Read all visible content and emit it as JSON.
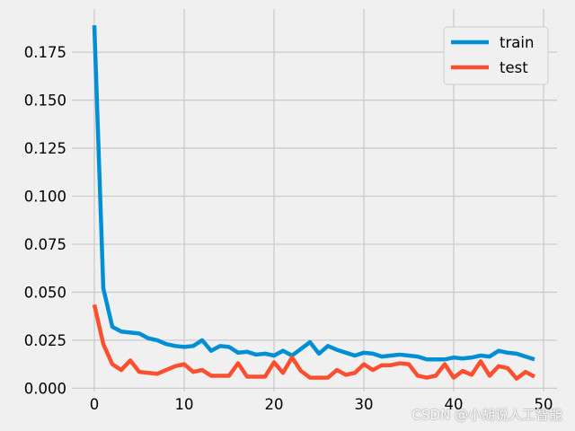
{
  "chart_data": {
    "type": "line",
    "title": "",
    "xlabel": "",
    "ylabel": "",
    "xlim": [
      -2.5,
      51.5
    ],
    "ylim": [
      -0.0017,
      0.1975
    ],
    "x_ticks": [
      0,
      10,
      20,
      30,
      40,
      50
    ],
    "x_tick_labels": [
      "0",
      "10",
      "20",
      "30",
      "40",
      "50"
    ],
    "y_ticks": [
      0.0,
      0.025,
      0.05,
      0.075,
      0.1,
      0.125,
      0.15,
      0.175
    ],
    "y_tick_labels": [
      "0.000",
      "0.025",
      "0.050",
      "0.075",
      "0.100",
      "0.125",
      "0.150",
      "0.175"
    ],
    "grid": true,
    "legend_position": "top-right",
    "legend": [
      "train",
      "test"
    ],
    "x": [
      0,
      1,
      2,
      3,
      4,
      5,
      6,
      7,
      8,
      9,
      10,
      11,
      12,
      13,
      14,
      15,
      16,
      17,
      18,
      19,
      20,
      21,
      22,
      23,
      24,
      25,
      26,
      27,
      28,
      29,
      30,
      31,
      32,
      33,
      34,
      35,
      36,
      37,
      38,
      39,
      40,
      41,
      42,
      43,
      44,
      45,
      46,
      47,
      48,
      49
    ],
    "series": [
      {
        "name": "train",
        "color": "#008fd5",
        "values": [
          0.189,
          0.052,
          0.032,
          0.0295,
          0.029,
          0.0285,
          0.026,
          0.025,
          0.023,
          0.022,
          0.0215,
          0.022,
          0.025,
          0.0195,
          0.022,
          0.0215,
          0.0185,
          0.019,
          0.0175,
          0.018,
          0.017,
          0.0195,
          0.017,
          0.0205,
          0.024,
          0.018,
          0.022,
          0.02,
          0.0185,
          0.017,
          0.0185,
          0.018,
          0.0165,
          0.017,
          0.0175,
          0.017,
          0.0165,
          0.015,
          0.015,
          0.015,
          0.016,
          0.0155,
          0.016,
          0.017,
          0.0165,
          0.0195,
          0.0185,
          0.018,
          0.0165,
          0.015
        ]
      },
      {
        "name": "test",
        "color": "#fc4f30",
        "values": [
          0.0435,
          0.023,
          0.0125,
          0.0095,
          0.0145,
          0.0085,
          0.008,
          0.0075,
          0.0095,
          0.0115,
          0.0125,
          0.0085,
          0.0095,
          0.0065,
          0.0065,
          0.0065,
          0.013,
          0.006,
          0.006,
          0.006,
          0.0135,
          0.008,
          0.016,
          0.009,
          0.0055,
          0.0055,
          0.0055,
          0.0095,
          0.007,
          0.008,
          0.0125,
          0.0095,
          0.012,
          0.012,
          0.013,
          0.0125,
          0.0065,
          0.0055,
          0.0065,
          0.0125,
          0.0055,
          0.009,
          0.007,
          0.014,
          0.0065,
          0.0115,
          0.0105,
          0.005,
          0.0085,
          0.006
        ]
      }
    ]
  },
  "watermark": {
    "text": "CSDN @小胡说人工智能"
  },
  "colors": {
    "background": "#f0f0f0",
    "grid": "#cbcbcb",
    "legend_bg": "#f0f0f0",
    "legend_border": "#cccccc"
  }
}
